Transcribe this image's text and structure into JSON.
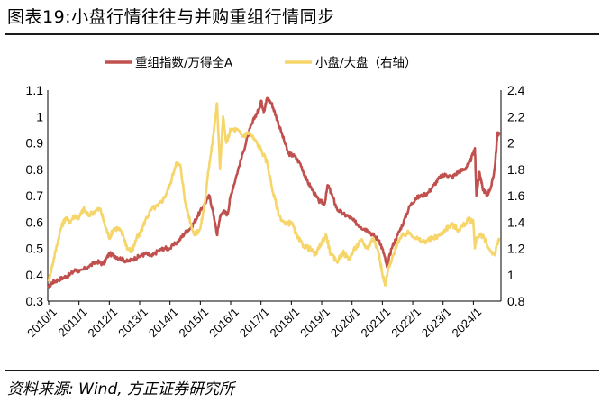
{
  "title": "图表19:小盘行情往往与并购重组行情同步",
  "source": "资料来源: Wind, 方正证券研究所",
  "colors": {
    "series1": "#c0504d",
    "series2": "#f6d56b"
  },
  "chart_data": {
    "type": "line",
    "x_ticks": [
      "2010/1",
      "2011/1",
      "2012/1",
      "2013/1",
      "2014/1",
      "2015/1",
      "2016/1",
      "2017/1",
      "2018/1",
      "2019/1",
      "2020/1",
      "2021/1",
      "2022/1",
      "2023/1",
      "2024/1"
    ],
    "x_range": [
      2010.0,
      2024.85
    ],
    "y_left": {
      "ticks": [
        "0.3",
        "0.4",
        "0.5",
        "0.6",
        "0.7",
        "0.8",
        "0.9",
        "1",
        "1.1"
      ],
      "range": [
        0.3,
        1.1
      ]
    },
    "y_right": {
      "ticks": [
        "0.8",
        "1",
        "1.2",
        "1.4",
        "1.6",
        "1.8",
        "2",
        "2.2",
        "2.4"
      ],
      "range": [
        0.8,
        2.4
      ]
    },
    "series": [
      {
        "name": "重组指数/万得全A",
        "axis": "left",
        "color": "#c0504d",
        "x": [
          2010.0,
          2010.1,
          2010.3,
          2010.5,
          2010.7,
          2010.9,
          2011.0,
          2011.3,
          2011.6,
          2011.8,
          2012.0,
          2012.2,
          2012.4,
          2012.6,
          2012.8,
          2013.0,
          2013.2,
          2013.4,
          2013.6,
          2013.8,
          2014.0,
          2014.3,
          2014.5,
          2014.7,
          2014.9,
          2015.1,
          2015.3,
          2015.45,
          2015.55,
          2015.65,
          2015.75,
          2015.9,
          2016.0,
          2016.2,
          2016.4,
          2016.6,
          2016.8,
          2016.95,
          2017.0,
          2017.1,
          2017.2,
          2017.35,
          2017.5,
          2017.7,
          2017.9,
          2018.1,
          2018.3,
          2018.5,
          2018.7,
          2018.9,
          2019.1,
          2019.2,
          2019.35,
          2019.5,
          2019.7,
          2019.9,
          2020.1,
          2020.3,
          2020.5,
          2020.7,
          2020.9,
          2021.05,
          2021.15,
          2021.3,
          2021.5,
          2021.7,
          2021.9,
          2022.1,
          2022.3,
          2022.5,
          2022.7,
          2022.9,
          2023.1,
          2023.3,
          2023.5,
          2023.7,
          2023.85,
          2024.0,
          2024.05,
          2024.1,
          2024.2,
          2024.3,
          2024.45,
          2024.6,
          2024.7,
          2024.8,
          2024.85
        ],
        "values": [
          0.35,
          0.37,
          0.38,
          0.39,
          0.4,
          0.42,
          0.41,
          0.43,
          0.45,
          0.44,
          0.48,
          0.47,
          0.46,
          0.45,
          0.46,
          0.47,
          0.48,
          0.47,
          0.49,
          0.5,
          0.5,
          0.53,
          0.56,
          0.58,
          0.62,
          0.66,
          0.7,
          0.62,
          0.55,
          0.62,
          0.64,
          0.63,
          0.7,
          0.78,
          0.86,
          0.94,
          1.0,
          1.03,
          1.06,
          1.02,
          1.07,
          1.05,
          1.0,
          0.93,
          0.86,
          0.85,
          0.82,
          0.76,
          0.72,
          0.68,
          0.67,
          0.74,
          0.7,
          0.65,
          0.63,
          0.62,
          0.6,
          0.58,
          0.57,
          0.55,
          0.53,
          0.48,
          0.43,
          0.5,
          0.55,
          0.6,
          0.66,
          0.69,
          0.7,
          0.71,
          0.74,
          0.77,
          0.78,
          0.77,
          0.79,
          0.8,
          0.82,
          0.86,
          0.88,
          0.7,
          0.79,
          0.73,
          0.7,
          0.74,
          0.8,
          0.94,
          0.93
        ]
      },
      {
        "name": "小盘/大盘（右轴）",
        "axis": "right",
        "color": "#f6d56b",
        "x": [
          2010.0,
          2010.1,
          2010.25,
          2010.4,
          2010.55,
          2010.7,
          2010.85,
          2011.0,
          2011.15,
          2011.3,
          2011.5,
          2011.7,
          2011.85,
          2012.0,
          2012.15,
          2012.3,
          2012.45,
          2012.6,
          2012.75,
          2012.9,
          2013.0,
          2013.2,
          2013.4,
          2013.6,
          2013.8,
          2014.0,
          2014.2,
          2014.35,
          2014.5,
          2014.65,
          2014.8,
          2015.0,
          2015.15,
          2015.3,
          2015.45,
          2015.55,
          2015.65,
          2015.75,
          2015.85,
          2016.0,
          2016.2,
          2016.4,
          2016.6,
          2016.8,
          2017.0,
          2017.2,
          2017.4,
          2017.6,
          2017.8,
          2018.0,
          2018.2,
          2018.4,
          2018.6,
          2018.8,
          2019.0,
          2019.15,
          2019.3,
          2019.5,
          2019.7,
          2019.9,
          2020.1,
          2020.3,
          2020.5,
          2020.7,
          2020.9,
          2021.0,
          2021.1,
          2021.2,
          2021.3,
          2021.5,
          2021.7,
          2021.9,
          2022.1,
          2022.3,
          2022.5,
          2022.7,
          2022.9,
          2023.1,
          2023.3,
          2023.5,
          2023.7,
          2023.85,
          2024.0,
          2024.05,
          2024.1,
          2024.3,
          2024.5,
          2024.7,
          2024.85
        ],
        "values": [
          0.96,
          1.05,
          1.2,
          1.35,
          1.43,
          1.4,
          1.45,
          1.43,
          1.5,
          1.45,
          1.48,
          1.5,
          1.38,
          1.28,
          1.35,
          1.35,
          1.3,
          1.2,
          1.18,
          1.28,
          1.3,
          1.42,
          1.5,
          1.52,
          1.58,
          1.68,
          1.85,
          1.82,
          1.55,
          1.42,
          1.3,
          1.35,
          1.55,
          1.85,
          2.1,
          2.3,
          1.8,
          2.2,
          2.0,
          2.1,
          2.1,
          2.05,
          2.08,
          2.02,
          1.95,
          1.85,
          1.62,
          1.45,
          1.38,
          1.4,
          1.28,
          1.22,
          1.2,
          1.15,
          1.25,
          1.3,
          1.15,
          1.1,
          1.17,
          1.12,
          1.2,
          1.26,
          1.2,
          1.28,
          1.15,
          1.0,
          0.93,
          1.05,
          1.1,
          1.25,
          1.3,
          1.32,
          1.28,
          1.25,
          1.26,
          1.28,
          1.3,
          1.35,
          1.38,
          1.34,
          1.38,
          1.42,
          1.4,
          1.2,
          1.28,
          1.3,
          1.2,
          1.15,
          1.28
        ]
      }
    ]
  }
}
